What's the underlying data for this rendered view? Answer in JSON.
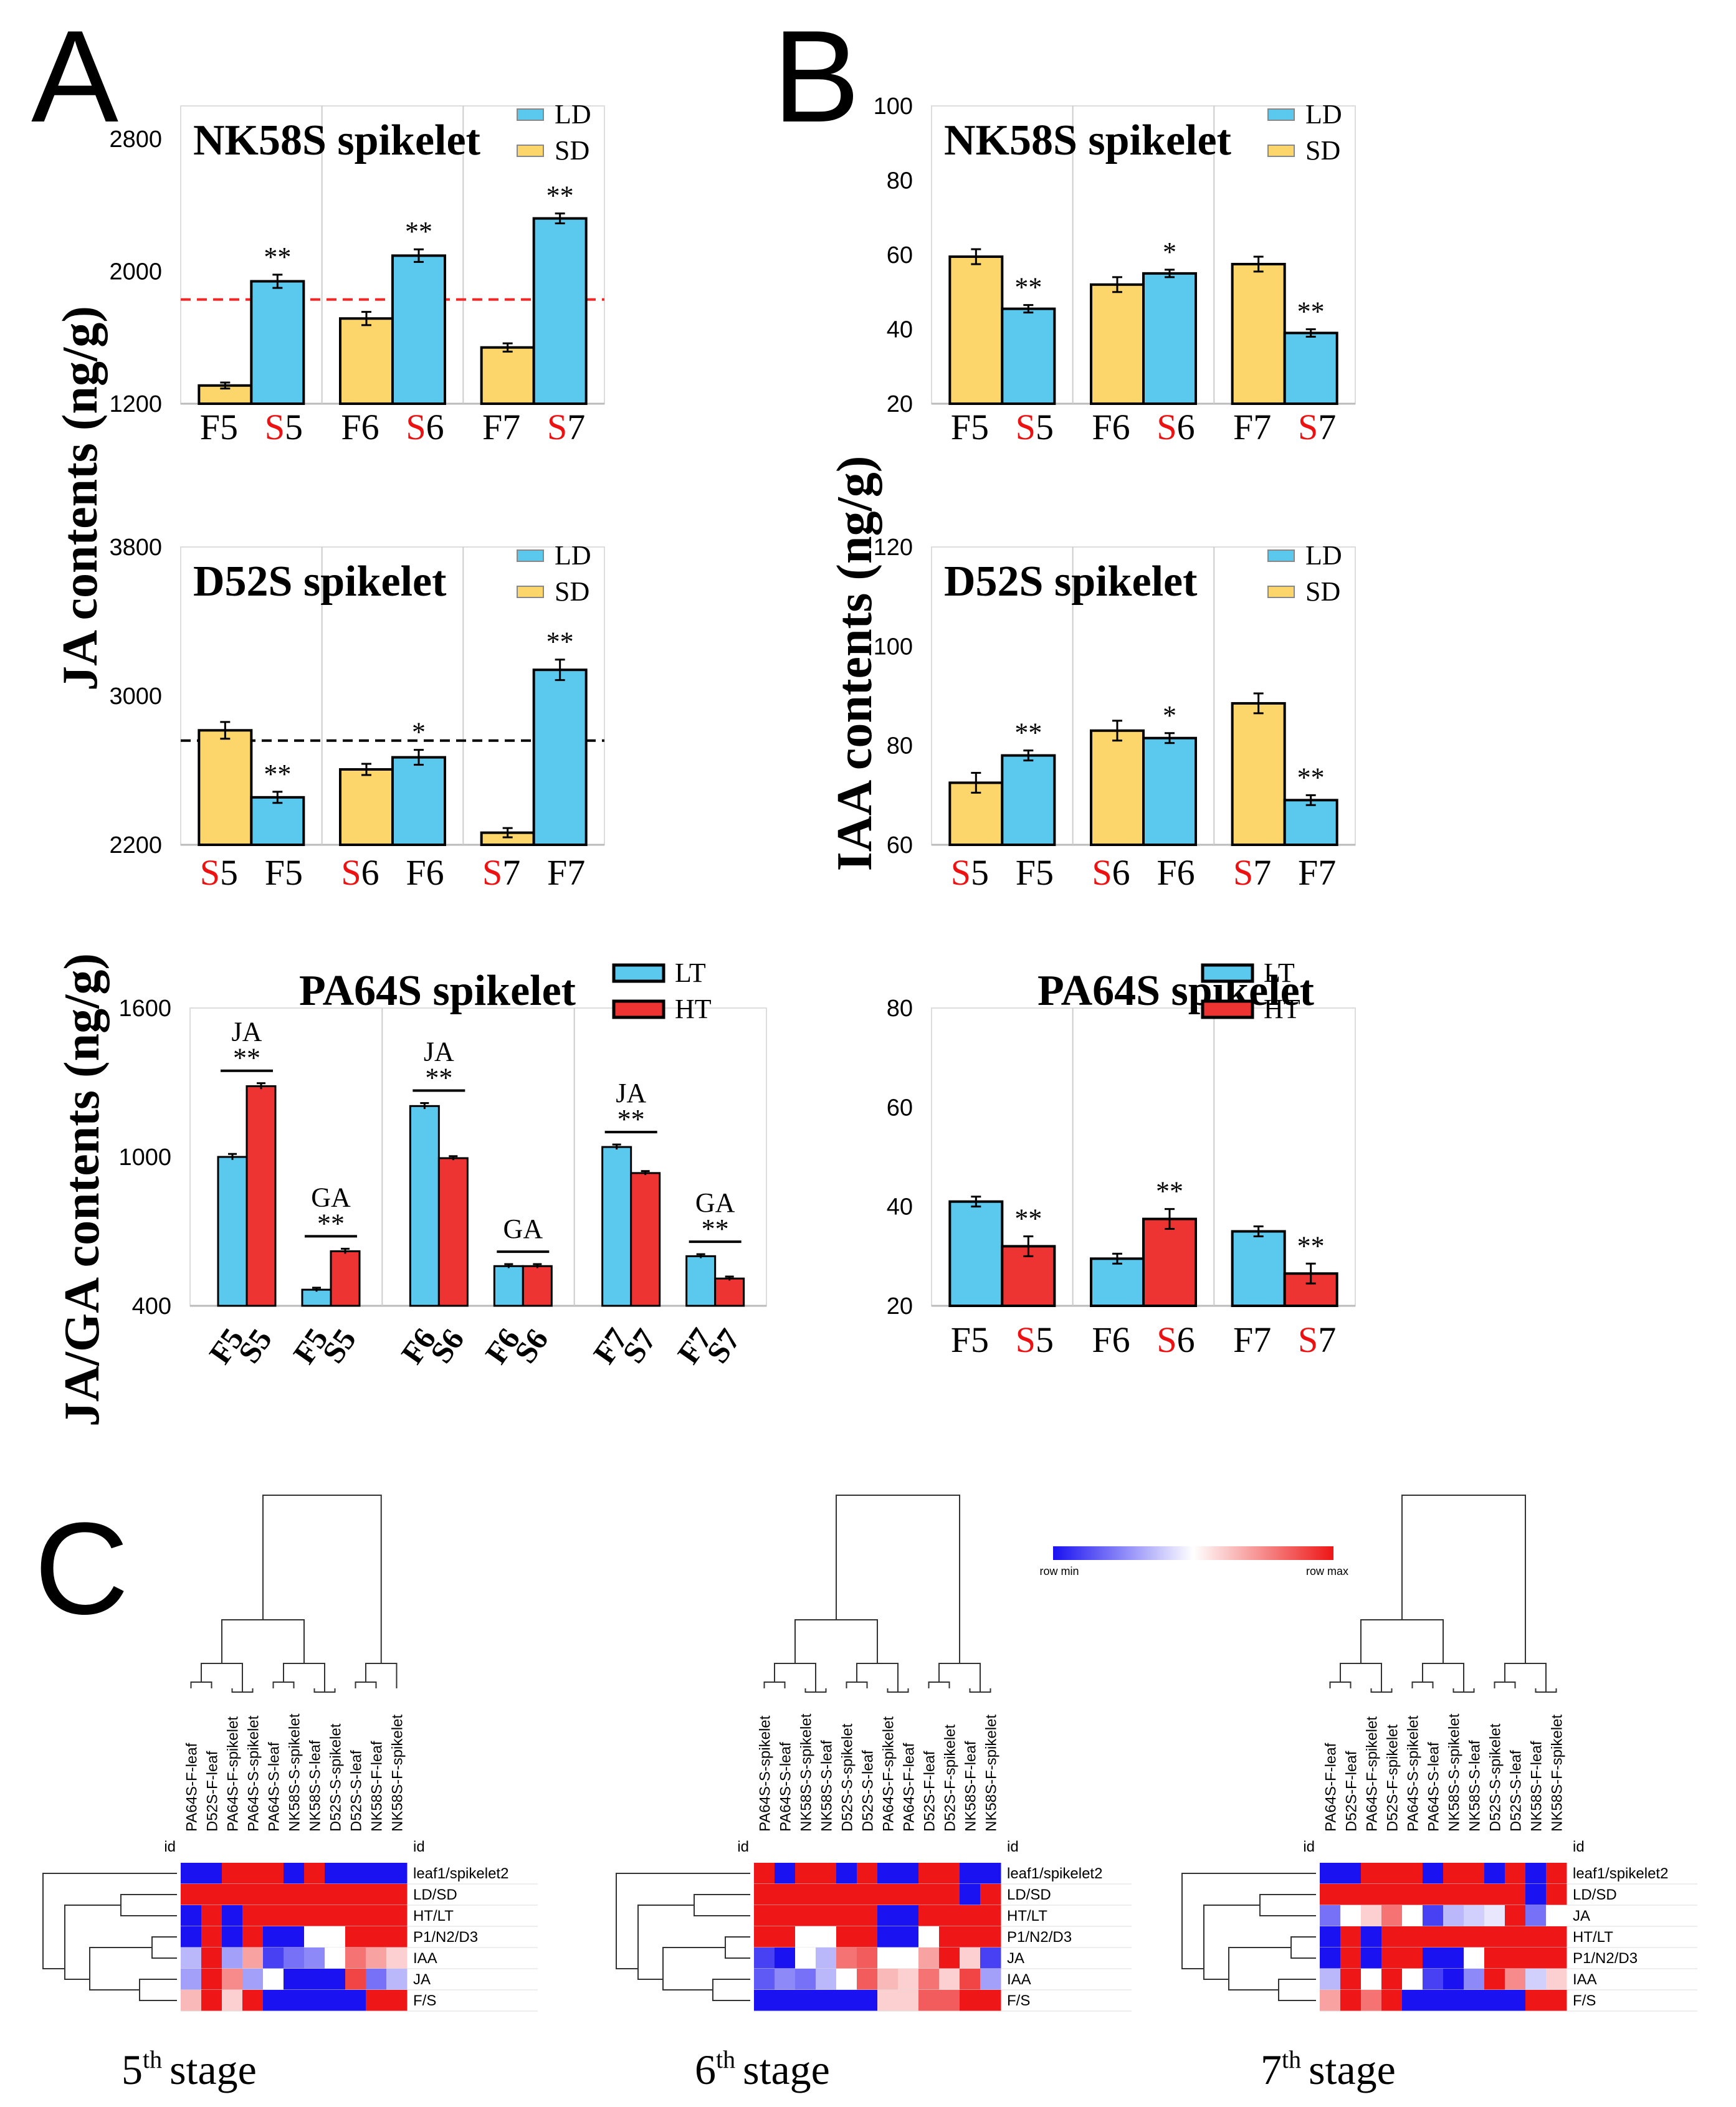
{
  "panels": {
    "A": "A",
    "B": "B",
    "C": "C"
  },
  "y_labels": {
    "ja": "JA contents (ng/g)",
    "iaa": "IAA contents (ng/g)",
    "jaga": "JA/GA contents (ng/g)"
  },
  "colors": {
    "LD": "#5bc8ee",
    "SD": "#fdd66b",
    "LT": "#5bc8ee",
    "HT": "#ee3333",
    "red_text": "#ee1111",
    "low": "#1a12f0",
    "mid": "#ffffff",
    "high": "#ee1616"
  },
  "chart_data": [
    {
      "id": "A1",
      "type": "bar",
      "title": "NK58S spikelet",
      "ylim": [
        1200,
        3000
      ],
      "yticks": [
        1200,
        2000,
        2800
      ],
      "legend": [
        "LD",
        "SD"
      ],
      "legend_position": "top-right",
      "groups": [
        {
          "labels": [
            [
              "F",
              "5"
            ],
            [
              "S",
              "5"
            ]
          ],
          "bars": [
            {
              "series": "SD",
              "value": 1310,
              "err": 18
            },
            {
              "series": "LD",
              "value": 1940,
              "err": 40,
              "sig": "**"
            }
          ]
        },
        {
          "labels": [
            [
              "F",
              "6"
            ],
            [
              "S",
              "6"
            ]
          ],
          "bars": [
            {
              "series": "SD",
              "value": 1715,
              "err": 40
            },
            {
              "series": "LD",
              "value": 2095,
              "err": 38,
              "sig": "**"
            }
          ]
        },
        {
          "labels": [
            [
              "F",
              "7"
            ],
            [
              "S",
              "7"
            ]
          ],
          "bars": [
            {
              "series": "SD",
              "value": 1540,
              "err": 25
            },
            {
              "series": "LD",
              "value": 2320,
              "err": 30,
              "sig": "**"
            }
          ]
        }
      ],
      "ref_line": {
        "value": 1830,
        "color": "#ff2222"
      }
    },
    {
      "id": "A2",
      "type": "bar",
      "title": "D52S spikelet",
      "ylim": [
        2200,
        3800
      ],
      "yticks": [
        2200,
        3000,
        3800
      ],
      "legend": [
        "LD",
        "SD"
      ],
      "legend_position": "top-right",
      "groups": [
        {
          "labels": [
            [
              "S",
              "5"
            ],
            [
              "F",
              "5"
            ]
          ],
          "bars": [
            {
              "series": "SD",
              "value": 2815,
              "err": 45
            },
            {
              "series": "LD",
              "value": 2455,
              "err": 30,
              "sig": "**"
            }
          ]
        },
        {
          "labels": [
            [
              "S",
              "6"
            ],
            [
              "F",
              "6"
            ]
          ],
          "bars": [
            {
              "series": "SD",
              "value": 2605,
              "err": 30
            },
            {
              "series": "LD",
              "value": 2670,
              "err": 40,
              "sig": "*"
            }
          ]
        },
        {
          "labels": [
            [
              "S",
              "7"
            ],
            [
              "F",
              "7"
            ]
          ],
          "bars": [
            {
              "series": "SD",
              "value": 2265,
              "err": 25
            },
            {
              "series": "LD",
              "value": 3140,
              "err": 55,
              "sig": "**"
            }
          ]
        }
      ],
      "ref_line": {
        "value": 2760,
        "color": "#000000"
      }
    },
    {
      "id": "B1",
      "type": "bar",
      "title": "NK58S spikelet",
      "ylim": [
        20,
        100
      ],
      "yticks": [
        20,
        40,
        60,
        80,
        100
      ],
      "legend": [
        "LD",
        "SD"
      ],
      "legend_position": "top-right",
      "groups": [
        {
          "labels": [
            [
              "F",
              "5"
            ],
            [
              "S",
              "5"
            ]
          ],
          "bars": [
            {
              "series": "SD",
              "value": 59.5,
              "err": 2.0
            },
            {
              "series": "LD",
              "value": 45.5,
              "err": 1.0,
              "sig": "**"
            }
          ]
        },
        {
          "labels": [
            [
              "F",
              "6"
            ],
            [
              "S",
              "6"
            ]
          ],
          "bars": [
            {
              "series": "SD",
              "value": 52,
              "err": 2.0
            },
            {
              "series": "LD",
              "value": 55,
              "err": 1.0,
              "sig": "*"
            }
          ]
        },
        {
          "labels": [
            [
              "F",
              "7"
            ],
            [
              "S",
              "7"
            ]
          ],
          "bars": [
            {
              "series": "SD",
              "value": 57.5,
              "err": 2.0
            },
            {
              "series": "LD",
              "value": 39,
              "err": 1.0,
              "sig": "**"
            }
          ]
        }
      ]
    },
    {
      "id": "B2",
      "type": "bar",
      "title": "D52S spikelet",
      "ylim": [
        60,
        120
      ],
      "yticks": [
        60,
        80,
        100,
        120
      ],
      "legend": [
        "LD",
        "SD"
      ],
      "legend_position": "top-right",
      "groups": [
        {
          "labels": [
            [
              "S",
              "5"
            ],
            [
              "F",
              "5"
            ]
          ],
          "bars": [
            {
              "series": "SD",
              "value": 72.5,
              "err": 2.0
            },
            {
              "series": "LD",
              "value": 78,
              "err": 1.0,
              "sig": "**"
            }
          ]
        },
        {
          "labels": [
            [
              "S",
              "6"
            ],
            [
              "F",
              "6"
            ]
          ],
          "bars": [
            {
              "series": "SD",
              "value": 83,
              "err": 2.0
            },
            {
              "series": "LD",
              "value": 81.5,
              "err": 1.0,
              "sig": "*"
            }
          ]
        },
        {
          "labels": [
            [
              "S",
              "7"
            ],
            [
              "F",
              "7"
            ]
          ],
          "bars": [
            {
              "series": "SD",
              "value": 88.5,
              "err": 2.0
            },
            {
              "series": "LD",
              "value": 69,
              "err": 1.0,
              "sig": "**"
            }
          ]
        }
      ]
    },
    {
      "id": "A3",
      "type": "bar",
      "title": "PA64S spikelet",
      "ylim": [
        400,
        1600
      ],
      "yticks": [
        400,
        1000,
        1600
      ],
      "legend": [
        "LT",
        "HT"
      ],
      "legend_position": "top-right",
      "groups": [
        {
          "hormones": [
            {
              "name": "JA",
              "sig": "**",
              "labels": [
                "F5",
                "S5"
              ],
              "bars": [
                {
                  "series": "LT",
                  "value": 1000,
                  "err": 12
                },
                {
                  "series": "HT",
                  "value": 1285,
                  "err": 12
                }
              ]
            },
            {
              "name": "GA",
              "sig": "**",
              "labels": [
                "F5",
                "S5"
              ],
              "bars": [
                {
                  "series": "LT",
                  "value": 465,
                  "err": 8
                },
                {
                  "series": "HT",
                  "value": 620,
                  "err": 10
                }
              ]
            }
          ]
        },
        {
          "hormones": [
            {
              "name": "JA",
              "sig": "**",
              "labels": [
                "F6",
                "S6"
              ],
              "bars": [
                {
                  "series": "LT",
                  "value": 1205,
                  "err": 12
                },
                {
                  "series": "HT",
                  "value": 995,
                  "err": 8
                }
              ]
            },
            {
              "name": "GA",
              "sig": "",
              "labels": [
                "F6",
                "S6"
              ],
              "bars": [
                {
                  "series": "LT",
                  "value": 560,
                  "err": 8
                },
                {
                  "series": "HT",
                  "value": 560,
                  "err": 8
                }
              ]
            }
          ]
        },
        {
          "hormones": [
            {
              "name": "JA",
              "sig": "**",
              "labels": [
                "F7",
                "S7"
              ],
              "bars": [
                {
                  "series": "LT",
                  "value": 1040,
                  "err": 10
                },
                {
                  "series": "HT",
                  "value": 935,
                  "err": 8
                }
              ]
            },
            {
              "name": "GA",
              "sig": "**",
              "labels": [
                "F7",
                "S7"
              ],
              "bars": [
                {
                  "series": "LT",
                  "value": 600,
                  "err": 8
                },
                {
                  "series": "HT",
                  "value": 510,
                  "err": 8
                }
              ]
            }
          ]
        }
      ]
    },
    {
      "id": "B3",
      "type": "bar",
      "title": "PA64S spikelet",
      "ylim": [
        20,
        80
      ],
      "yticks": [
        20,
        40,
        60,
        80
      ],
      "legend": [
        "LT",
        "HT"
      ],
      "legend_position": "top-right",
      "groups": [
        {
          "labels": [
            [
              "F",
              "5"
            ],
            [
              "S",
              "5"
            ]
          ],
          "bars": [
            {
              "series": "LT",
              "value": 41,
              "err": 1.0
            },
            {
              "series": "HT",
              "value": 32,
              "err": 2.0,
              "sig": "**"
            }
          ]
        },
        {
          "labels": [
            [
              "F",
              "6"
            ],
            [
              "S",
              "6"
            ]
          ],
          "bars": [
            {
              "series": "LT",
              "value": 29.5,
              "err": 1.0
            },
            {
              "series": "HT",
              "value": 37.5,
              "err": 2.0,
              "sig": "**"
            }
          ]
        },
        {
          "labels": [
            [
              "F",
              "7"
            ],
            [
              "S",
              "7"
            ]
          ],
          "bars": [
            {
              "series": "LT",
              "value": 35,
              "err": 1.0
            },
            {
              "series": "HT",
              "value": 26.5,
              "err": 2.0,
              "sig": "**"
            }
          ]
        }
      ]
    },
    {
      "id": "C",
      "type": "heatmap",
      "colorbar": {
        "min_label": "row min",
        "max_label": "row max"
      },
      "id_label": "id",
      "maps": [
        {
          "stage_num": "5",
          "stage_sup": "th",
          "stage_word": "stage",
          "columns": [
            "PA64S-F-leaf",
            "D52S-F-leaf",
            "PA64S-F-spikelet",
            "PA64S-S-spikelet",
            "PA64S-S-leaf",
            "NK58S-S-spikelet",
            "NK58S-S-leaf",
            "D52S-S-spikelet",
            "D52S-S-leaf",
            "NK58S-F-leaf",
            "NK58S-F-spikelet"
          ],
          "rows": [
            "leaf1/spikelet2",
            "LD/SD",
            "HT/LT",
            "P1/N2/D3",
            "IAA",
            "JA",
            "F/S"
          ],
          "values": [
            [
              0,
              0,
              1,
              1,
              1,
              0,
              1,
              0,
              0,
              0,
              0
            ],
            [
              1,
              1,
              1,
              1,
              1,
              1,
              1,
              1,
              1,
              1,
              1
            ],
            [
              0,
              1,
              0,
              1,
              1,
              1,
              1,
              1,
              1,
              1,
              1
            ],
            [
              0,
              1,
              0,
              1,
              0,
              0,
              0.5,
              0.5,
              1,
              1,
              1
            ],
            [
              0.35,
              1,
              0.3,
              0.7,
              0.1,
              0.2,
              0.25,
              0.5,
              0.8,
              0.7,
              0.6
            ],
            [
              0.3,
              1,
              0.75,
              0.3,
              0.5,
              0,
              0,
              0,
              0.9,
              0.2,
              0.35
            ],
            [
              0.65,
              1,
              0.6,
              1,
              0,
              0,
              0,
              0,
              0,
              1,
              1
            ]
          ]
        },
        {
          "stage_num": "6",
          "stage_sup": "th",
          "stage_word": "stage",
          "columns": [
            "PA64S-S-spikelet",
            "PA64S-S-leaf",
            "NK58S-S-spikelet",
            "NK58S-S-leaf",
            "D52S-S-spikelet",
            "D52S-S-leaf",
            "PA64S-F-spikelet",
            "PA64S-F-leaf",
            "D52S-F-leaf",
            "D52S-F-spikelet",
            "NK58S-F-leaf",
            "NK58S-F-spikelet"
          ],
          "rows": [
            "leaf1/spikelet2",
            "LD/SD",
            "HT/LT",
            "P1/N2/D3",
            "JA",
            "IAA",
            "F/S"
          ],
          "values": [
            [
              1,
              0,
              1,
              1,
              0,
              1,
              0,
              0,
              1,
              1,
              0,
              0
            ],
            [
              1,
              1,
              1,
              1,
              1,
              1,
              1,
              1,
              1,
              1,
              0,
              1
            ],
            [
              1,
              1,
              1,
              1,
              1,
              1,
              0,
              0,
              1,
              1,
              1,
              1
            ],
            [
              1,
              1,
              0.5,
              0.5,
              1,
              1,
              0,
              0,
              0.5,
              1,
              1,
              1
            ],
            [
              0.1,
              0,
              0.5,
              0.35,
              0.8,
              0.85,
              0.5,
              0.5,
              0.7,
              1,
              0.6,
              0.1
            ],
            [
              0.15,
              0.25,
              0.2,
              0.35,
              0.5,
              0.85,
              0.65,
              0.6,
              0.8,
              0.6,
              0.9,
              0.3
            ],
            [
              0,
              0,
              0,
              0,
              0,
              0,
              0.6,
              0.6,
              0.85,
              0.85,
              1,
              1
            ]
          ]
        },
        {
          "stage_num": "7",
          "stage_sup": "th",
          "stage_word": "stage",
          "columns": [
            "PA64S-F-leaf",
            "D52S-F-leaf",
            "PA64S-F-spikelet",
            "D52S-F-spikelet",
            "PA64S-S-spikelet",
            "PA64S-S-leaf",
            "NK58S-S-spikelet",
            "NK58S-S-leaf",
            "D52S-S-spikelet",
            "D52S-S-leaf",
            "NK58S-F-leaf",
            "NK58S-F-spikelet"
          ],
          "rows": [
            "leaf1/spikelet2",
            "LD/SD",
            "JA",
            "HT/LT",
            "P1/N2/D3",
            "IAA",
            "F/S"
          ],
          "values": [
            [
              0,
              0,
              1,
              1,
              1,
              0,
              1,
              1,
              0,
              1,
              0,
              1
            ],
            [
              1,
              1,
              1,
              1,
              1,
              1,
              1,
              1,
              1,
              1,
              0,
              1
            ],
            [
              0.2,
              0.5,
              0.6,
              0.8,
              0.5,
              0.1,
              0.35,
              0.4,
              0.45,
              1,
              0.2,
              0.5
            ],
            [
              0,
              1,
              0,
              1,
              1,
              1,
              1,
              1,
              1,
              1,
              1,
              1
            ],
            [
              0,
              1,
              0,
              1,
              1,
              0,
              0,
              0.5,
              1,
              1,
              1,
              1
            ],
            [
              0.35,
              1,
              0.5,
              1,
              0.5,
              0.1,
              0,
              0.25,
              1,
              0.75,
              0.4,
              0.6
            ],
            [
              0.7,
              1,
              0.8,
              1,
              0,
              0,
              0,
              0,
              0,
              0,
              1,
              1
            ]
          ]
        }
      ]
    }
  ]
}
